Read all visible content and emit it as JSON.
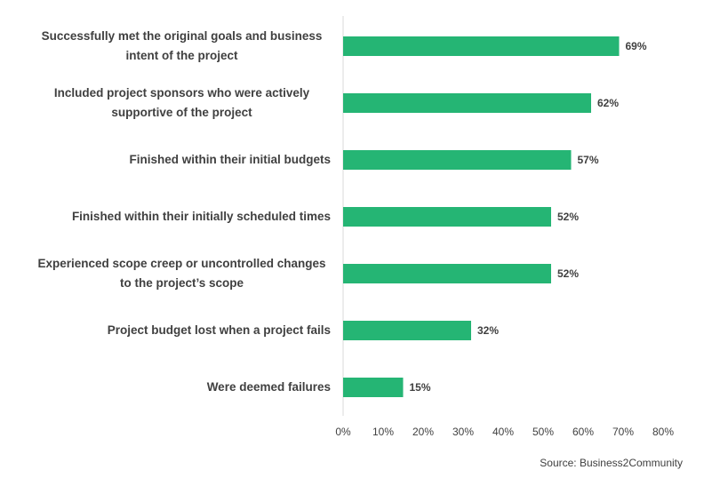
{
  "chart_data": {
    "type": "bar",
    "orientation": "horizontal",
    "categories": [
      "Successfully met the original goals and business intent of the project",
      "Included project sponsors who were actively supportive of the project",
      "Finished within their initial budgets",
      "Finished within their initially scheduled times",
      "Experienced scope creep or uncontrolled changes to the project’s scope",
      "Project budget lost when a project fails",
      "Were deemed failures"
    ],
    "values": [
      69,
      62,
      57,
      52,
      52,
      32,
      15
    ],
    "value_labels": [
      "69%",
      "62%",
      "57%",
      "52%",
      "52%",
      "32%",
      "15%"
    ],
    "color": "#25b574",
    "xlim": [
      0,
      80
    ],
    "xticks": [
      {
        "value": 0,
        "label": "0%"
      },
      {
        "value": 10,
        "label": "10%"
      },
      {
        "value": 20,
        "label": "20%"
      },
      {
        "value": 30,
        "label": "30%"
      },
      {
        "value": 40,
        "label": "40%"
      },
      {
        "value": 50,
        "label": "50%"
      },
      {
        "value": 60,
        "label": "60%"
      },
      {
        "value": 70,
        "label": "70%"
      },
      {
        "value": 80,
        "label": "80%"
      }
    ],
    "grid": false,
    "source": "Source: Business2Community"
  }
}
